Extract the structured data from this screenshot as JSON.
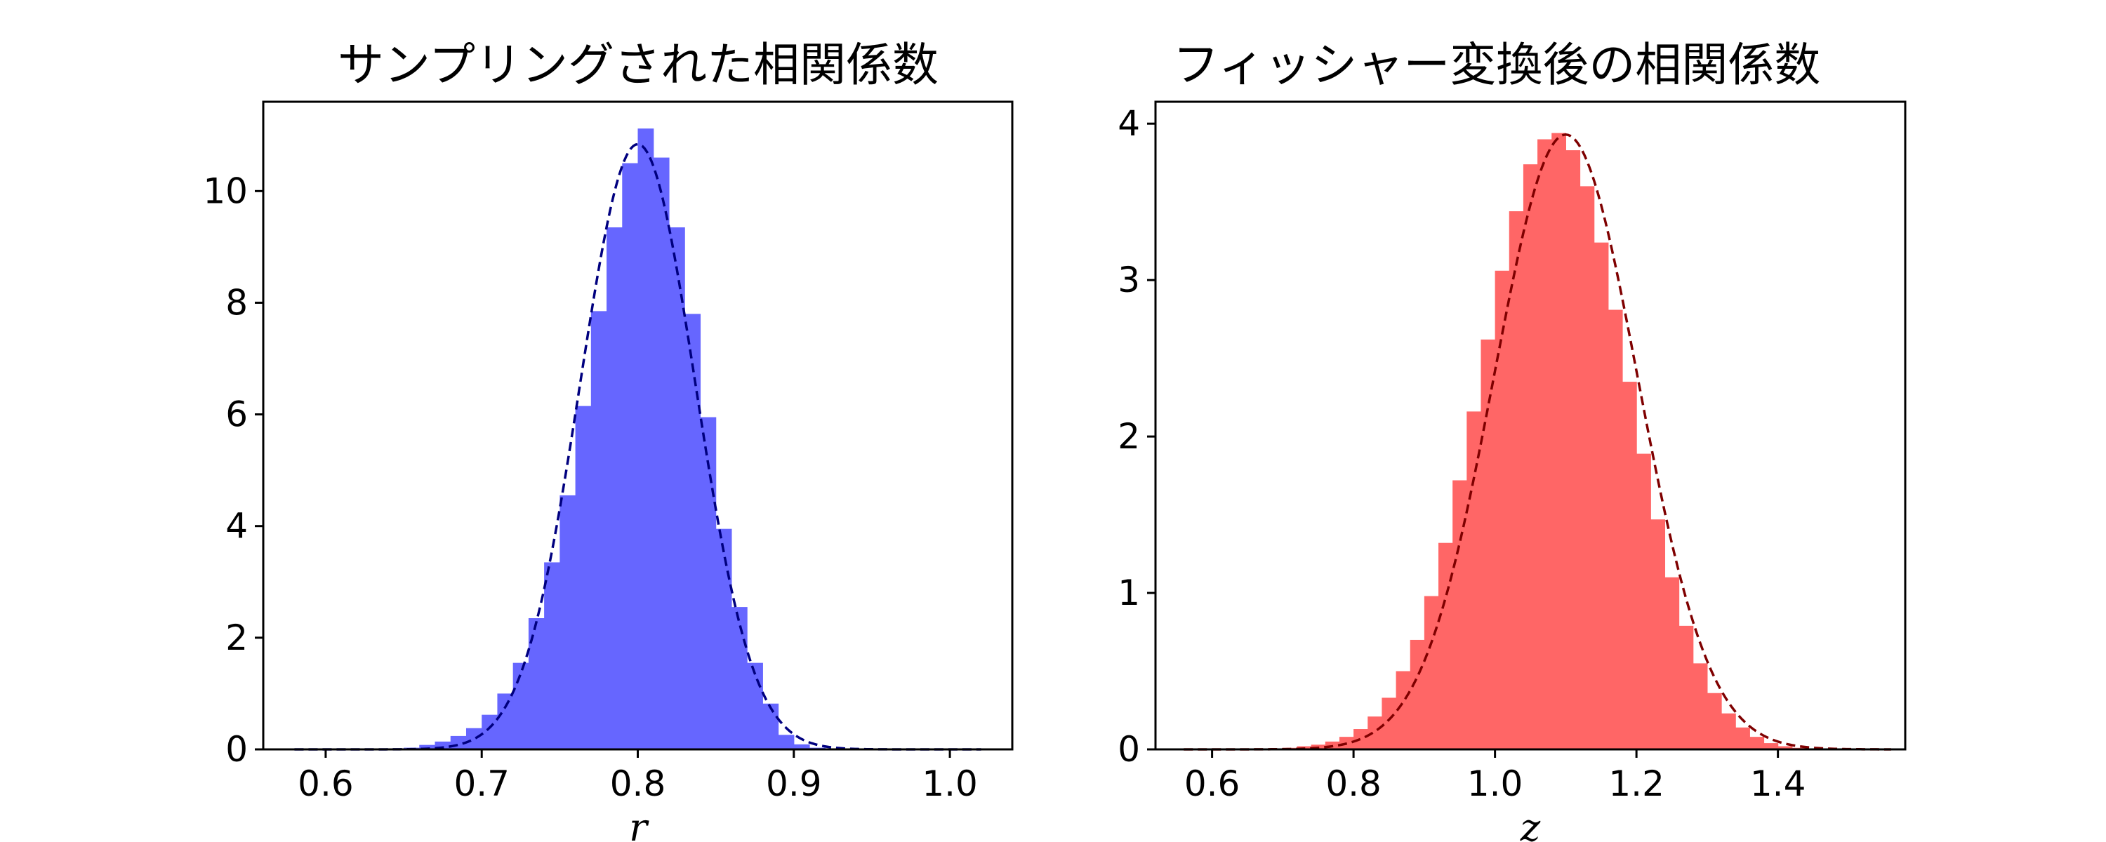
{
  "chart_data": [
    {
      "type": "bar",
      "title": "サンプリングされた相関係数",
      "xlabel": "r",
      "ylabel": "",
      "xlim": [
        0.56,
        1.04
      ],
      "ylim": [
        0,
        11.6
      ],
      "xticks": [
        0.6,
        0.7,
        0.8,
        0.9,
        1.0
      ],
      "xtick_labels": [
        "0.6",
        "0.7",
        "0.8",
        "0.9",
        "1.0"
      ],
      "yticks": [
        0,
        2,
        4,
        6,
        8,
        10
      ],
      "ytick_labels": [
        "0",
        "2",
        "4",
        "6",
        "8",
        "10"
      ],
      "grid": false,
      "colors": {
        "bar": "#6666ff",
        "curve": "#00007f"
      },
      "bin_edges": [
        0.58,
        0.59,
        0.6,
        0.61,
        0.62,
        0.63,
        0.64,
        0.65,
        0.66,
        0.67,
        0.68,
        0.69,
        0.7,
        0.71,
        0.72,
        0.73,
        0.74,
        0.75,
        0.76,
        0.77,
        0.78,
        0.79,
        0.8,
        0.81,
        0.82,
        0.83,
        0.84,
        0.85,
        0.86,
        0.87,
        0.88,
        0.89,
        0.9,
        0.91,
        0.92,
        0.93,
        0.94,
        0.95,
        0.96,
        0.97,
        0.98,
        0.99,
        1.0,
        1.01,
        1.02
      ],
      "values": [
        0,
        0,
        0,
        0,
        0,
        0,
        0.01,
        0.03,
        0.08,
        0.14,
        0.24,
        0.38,
        0.62,
        1.0,
        1.55,
        2.35,
        3.35,
        4.55,
        6.15,
        7.85,
        9.35,
        10.5,
        11.12,
        10.6,
        9.35,
        7.8,
        5.95,
        3.95,
        2.55,
        1.55,
        0.82,
        0.26,
        0.09,
        0.03,
        0,
        0,
        0,
        0,
        0,
        0,
        0,
        0,
        0,
        0
      ],
      "fit_curve": {
        "style": "dashed",
        "mean": 0.8,
        "sd": 0.0368,
        "peak": 10.84,
        "range": [
          0.58,
          1.02
        ]
      }
    },
    {
      "type": "bar",
      "title": "フィッシャー変換後の相関係数",
      "xlabel": "z",
      "ylabel": "",
      "xlim": [
        0.52,
        1.58
      ],
      "ylim": [
        0,
        4.14
      ],
      "xticks": [
        0.6,
        0.8,
        1.0,
        1.2,
        1.4
      ],
      "xtick_labels": [
        "0.6",
        "0.8",
        "1.0",
        "1.2",
        "1.4"
      ],
      "yticks": [
        0,
        1,
        2,
        3,
        4
      ],
      "ytick_labels": [
        "0",
        "1",
        "2",
        "3",
        "4"
      ],
      "grid": false,
      "colors": {
        "bar": "#ff6666",
        "curve": "#7f0000"
      },
      "bin_edges": [
        0.56,
        0.58,
        0.6,
        0.62,
        0.64,
        0.66,
        0.68,
        0.7,
        0.72,
        0.74,
        0.76,
        0.78,
        0.8,
        0.82,
        0.84,
        0.86,
        0.88,
        0.9,
        0.92,
        0.94,
        0.96,
        0.98,
        1.0,
        1.02,
        1.04,
        1.06,
        1.08,
        1.1,
        1.12,
        1.14,
        1.16,
        1.18,
        1.2,
        1.22,
        1.24,
        1.26,
        1.28,
        1.3,
        1.32,
        1.34,
        1.36,
        1.38,
        1.4,
        1.42,
        1.44,
        1.46,
        1.48,
        1.5,
        1.52,
        1.54,
        1.56
      ],
      "values": [
        0,
        0,
        0,
        0,
        0,
        0,
        0,
        0.01,
        0.02,
        0.03,
        0.05,
        0.08,
        0.13,
        0.21,
        0.33,
        0.5,
        0.7,
        0.98,
        1.32,
        1.72,
        2.16,
        2.62,
        3.06,
        3.44,
        3.74,
        3.9,
        3.94,
        3.83,
        3.6,
        3.24,
        2.81,
        2.35,
        1.89,
        1.47,
        1.1,
        0.79,
        0.55,
        0.36,
        0.23,
        0.14,
        0.08,
        0.04,
        0.02,
        0.01,
        0,
        0,
        0,
        0,
        0,
        0
      ],
      "fit_curve": {
        "style": "dashed",
        "mean": 1.1,
        "sd": 0.1015,
        "peak": 3.93,
        "range": [
          0.56,
          1.56
        ]
      }
    }
  ]
}
